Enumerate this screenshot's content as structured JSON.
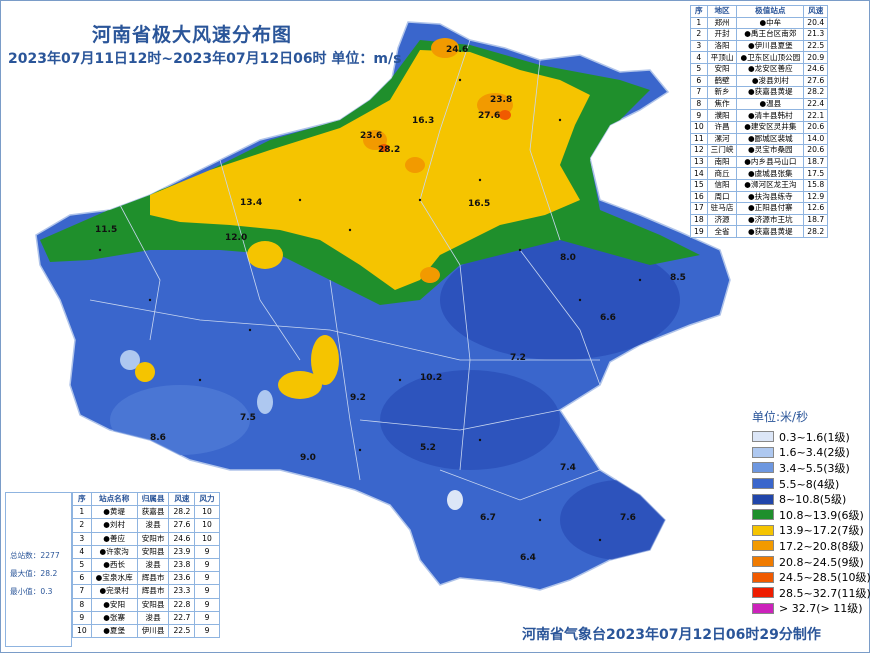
{
  "title": "河南省极大风速分布图",
  "subtitle": "2023年07月11日12时~2023年07月12日06时 单位：m/s",
  "footer": "河南省气象台2023年07月12日06时29分制作",
  "colors": {
    "province_blue": "#3a66cc",
    "deep_blue": "#2a4fb8",
    "green": "#1f8f2c",
    "yellow": "#f5c400",
    "orange": "#f29a00",
    "border": "#b0c4ea",
    "text_blue": "#2a5599"
  },
  "stats": {
    "total_label": "总站数：",
    "total_value": "2277",
    "max_label": "最大值：",
    "max_value": "28.2",
    "min_label": "最小值：",
    "min_value": "0.3"
  },
  "ranking_table": {
    "headers": [
      "序",
      "地区",
      "极值站点",
      "风速"
    ],
    "rows": [
      [
        "1",
        "郑州",
        "●中牟",
        "20.4"
      ],
      [
        "2",
        "开封",
        "●禹王台区南郊",
        "21.3"
      ],
      [
        "3",
        "洛阳",
        "●伊川县夏堡",
        "22.5"
      ],
      [
        "4",
        "平顶山",
        "●卫东区山顶公园",
        "20.9"
      ],
      [
        "5",
        "安阳",
        "●龙安区善应",
        "24.6"
      ],
      [
        "6",
        "鹤壁",
        "●浚县刘村",
        "27.6"
      ],
      [
        "7",
        "新乡",
        "●获嘉县黄堤",
        "28.2"
      ],
      [
        "8",
        "焦作",
        "●温县",
        "22.4"
      ],
      [
        "9",
        "濮阳",
        "●清丰县韩村",
        "22.1"
      ],
      [
        "10",
        "许昌",
        "●建安区灵井集",
        "20.6"
      ],
      [
        "11",
        "漯河",
        "●郾城区裴城",
        "14.0"
      ],
      [
        "12",
        "三门峡",
        "●灵宝市桑园",
        "20.6"
      ],
      [
        "13",
        "南阳",
        "●内乡县马山口",
        "18.7"
      ],
      [
        "14",
        "商丘",
        "●虞城县张集",
        "17.5"
      ],
      [
        "15",
        "信阳",
        "●浉河区龙王沟",
        "15.8"
      ],
      [
        "16",
        "周口",
        "●扶沟县练寺",
        "12.9"
      ],
      [
        "17",
        "驻马店",
        "●正阳县付寨",
        "12.6"
      ],
      [
        "18",
        "济源",
        "●济源市王坑",
        "18.7"
      ],
      [
        "19",
        "全省",
        "●获嘉县黄堤",
        "28.2"
      ]
    ]
  },
  "top10_table": {
    "headers": [
      "序",
      "站点名称",
      "归属县",
      "风速",
      "风力"
    ],
    "rows": [
      [
        "1",
        "●黄堤",
        "获嘉县",
        "28.2",
        "10"
      ],
      [
        "2",
        "●刘村",
        "浚县",
        "27.6",
        "10"
      ],
      [
        "3",
        "●善应",
        "安阳市",
        "24.6",
        "10"
      ],
      [
        "4",
        "●许家沟",
        "安阳县",
        "23.9",
        "9"
      ],
      [
        "5",
        "●西长",
        "浚县",
        "23.8",
        "9"
      ],
      [
        "6",
        "●宝泉水库",
        "辉县市",
        "23.6",
        "9"
      ],
      [
        "7",
        "●完录村",
        "辉县市",
        "23.3",
        "9"
      ],
      [
        "8",
        "●安阳",
        "安阳县",
        "22.8",
        "9"
      ],
      [
        "9",
        "●张寨",
        "浚县",
        "22.7",
        "9"
      ],
      [
        "10",
        "●夏堡",
        "伊川县",
        "22.5",
        "9"
      ]
    ]
  },
  "legend": {
    "title": "单位:米/秒",
    "items": [
      {
        "label": "0.3~1.6(1级)",
        "color": "#dce6f7"
      },
      {
        "label": "1.6~3.4(2级)",
        "color": "#aec8f0"
      },
      {
        "label": "3.4~5.5(3级)",
        "color": "#6d97e0"
      },
      {
        "label": "5.5~8(4级)",
        "color": "#3a66cc"
      },
      {
        "label": "8~10.8(5级)",
        "color": "#2146aa"
      },
      {
        "label": "10.8~13.9(6级)",
        "color": "#1f8f2c"
      },
      {
        "label": "13.9~17.2(7级)",
        "color": "#f5c400"
      },
      {
        "label": "17.2~20.8(8级)",
        "color": "#f29a00"
      },
      {
        "label": "20.8~24.5(9级)",
        "color": "#f07b00"
      },
      {
        "label": "24.5~28.5(10级)",
        "color": "#f05a00"
      },
      {
        "label": "28.5~32.7(11级)",
        "color": "#ee1c00"
      },
      {
        "label": "> 32.7(> 11级)",
        "color": "#cc22bb"
      }
    ]
  },
  "map_values": [
    "24.6",
    "27.6",
    "23.8",
    "28.2",
    "23.6",
    "16.3",
    "16.5",
    "13.4",
    "11.5",
    "12.0",
    "8.6",
    "7.5",
    "9.2",
    "10.2",
    "7.2",
    "6.6",
    "8.5",
    "7.4",
    "6.7",
    "6.4",
    "9.0",
    "7.6",
    "5.2",
    "8.0"
  ]
}
